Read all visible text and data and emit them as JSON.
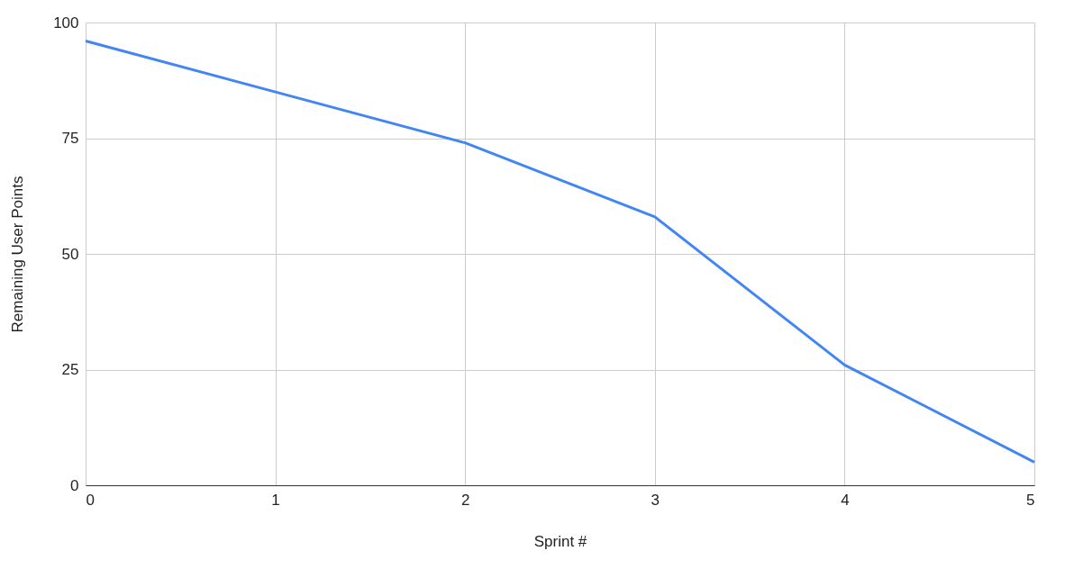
{
  "chart_data": {
    "type": "line",
    "xlabel": "Sprint #",
    "ylabel": "Remaining User Points",
    "x": [
      0,
      1,
      2,
      3,
      4,
      5
    ],
    "series": [
      {
        "color": "#4285f4",
        "values": [
          96,
          85,
          74,
          58,
          26,
          5
        ]
      }
    ],
    "xlim": [
      0,
      5
    ],
    "xticks": [
      0,
      1,
      2,
      3,
      4,
      5
    ],
    "ylim": [
      0,
      100
    ],
    "yticks": [
      0,
      25,
      50,
      75,
      100
    ],
    "grid": true,
    "marker": "none",
    "line_style": "solid"
  }
}
